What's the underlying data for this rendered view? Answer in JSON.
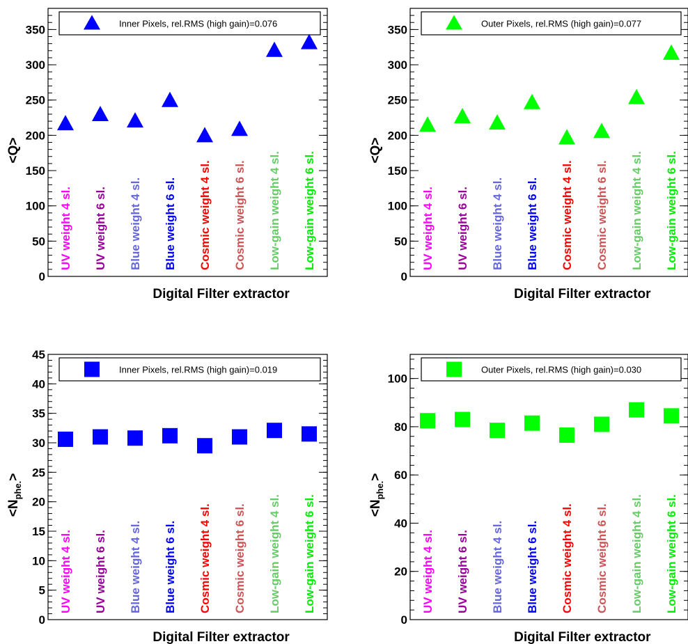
{
  "chart_data": [
    {
      "type": "scatter",
      "marker": "triangle",
      "color": "#0000ff",
      "legend": "Inner Pixels, rel.RMS (high gain)=0.076",
      "legend_placement": "top",
      "ylabel": "<Q>",
      "xlabel": "Digital Filter extractor",
      "ylim": [
        0,
        380
      ],
      "yticks": [
        "0",
        "50",
        "100",
        "150",
        "200",
        "250",
        "300",
        "350"
      ],
      "y_tick_values": [
        0,
        50,
        100,
        150,
        200,
        250,
        300,
        350
      ],
      "categories": [
        "UV weight 4 sl.",
        "UV weight 6 sl.",
        "Blue weight 4 sl.",
        "Blue weight 6 sl.",
        "Cosmic weight 4 sl.",
        "Cosmic weight 6 sl.",
        "Low-gain weight 4 sl.",
        "Low-gain weight 6 sl."
      ],
      "values": [
        216,
        229,
        220,
        249,
        199,
        208,
        320,
        331
      ]
    },
    {
      "type": "scatter",
      "marker": "triangle",
      "color": "#00ff00",
      "legend": "Outer Pixels,  rel.RMS (high gain)=0.077",
      "legend_placement": "top",
      "ylabel": "<Q>",
      "xlabel": "Digital Filter extractor",
      "ylim": [
        0,
        380
      ],
      "yticks": [
        "0",
        "50",
        "100",
        "150",
        "200",
        "250",
        "300",
        "350"
      ],
      "y_tick_values": [
        0,
        50,
        100,
        150,
        200,
        250,
        300,
        350
      ],
      "categories": [
        "UV weight 4 sl.",
        "UV weight 6 sl.",
        "Blue weight 4 sl.",
        "Blue weight 6 sl.",
        "Cosmic weight 4 sl.",
        "Cosmic weight 6 sl.",
        "Low-gain weight 4 sl.",
        "Low-gain weight 6 sl."
      ],
      "values": [
        214,
        226,
        217,
        246,
        196,
        205,
        253,
        316
      ]
    },
    {
      "type": "scatter",
      "marker": "square",
      "color": "#0000ff",
      "legend": "Inner Pixels, rel.RMS (high gain)=0.019",
      "legend_placement": "top",
      "ylabel": "<N",
      "ylabel_sub": "phe.",
      "ylabel_suffix": ">",
      "xlabel": "Digital Filter extractor",
      "ylim": [
        0,
        45
      ],
      "yticks": [
        "0",
        "5",
        "10",
        "15",
        "20",
        "25",
        "30",
        "35",
        "40",
        "45"
      ],
      "y_tick_values": [
        0,
        5,
        10,
        15,
        20,
        25,
        30,
        35,
        40,
        45
      ],
      "categories": [
        "UV weight 4 sl.",
        "UV weight 6 sl.",
        "Blue weight 4 sl.",
        "Blue weight 6 sl.",
        "Cosmic weight 4 sl.",
        "Cosmic weight 6 sl.",
        "Low-gain weight 4 sl.",
        "Low-gain weight 6 sl."
      ],
      "values": [
        30.6,
        31.0,
        30.8,
        31.2,
        29.5,
        31.0,
        32.1,
        31.5
      ]
    },
    {
      "type": "scatter",
      "marker": "square",
      "color": "#00ff00",
      "legend": "Outer Pixels,  rel.RMS (high gain)=0.030",
      "legend_placement": "top",
      "ylabel": "<N",
      "ylabel_sub": "phe.",
      "ylabel_suffix": ">",
      "xlabel": "Digital Filter extractor",
      "ylim": [
        0,
        110
      ],
      "yticks": [
        "0",
        "20",
        "40",
        "60",
        "80",
        "100"
      ],
      "y_tick_values": [
        0,
        20,
        40,
        60,
        80,
        100
      ],
      "categories": [
        "UV weight 4 sl.",
        "UV weight 6 sl.",
        "Blue weight 4 sl.",
        "Blue weight 6 sl.",
        "Cosmic weight 4 sl.",
        "Cosmic weight 6 sl.",
        "Low-gain weight 4 sl.",
        "Low-gain weight 6 sl."
      ],
      "values": [
        82.5,
        83.0,
        78.5,
        81.5,
        76.5,
        81.0,
        87.0,
        84.5
      ]
    }
  ],
  "category_colors": [
    "#ff00ff",
    "#990099",
    "#6666dd",
    "#0000ff",
    "#ff0000",
    "#cc5555",
    "#66cc66",
    "#00ee00"
  ]
}
